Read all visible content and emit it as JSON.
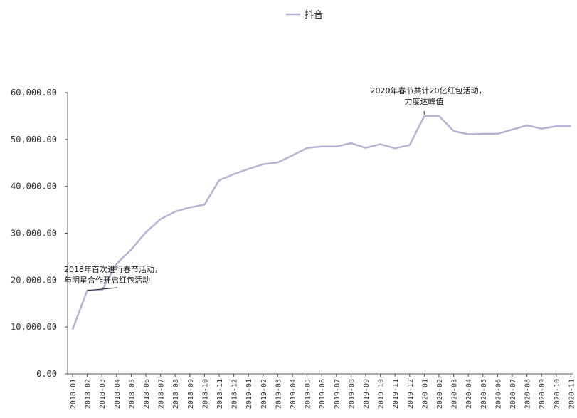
{
  "chart_data": {
    "type": "line",
    "title": "",
    "xlabel": "",
    "ylabel": "",
    "legend": {
      "position": "top-center"
    },
    "grid": false,
    "ylim": [
      0,
      60000
    ],
    "y_ticks": [
      "0.00",
      "10,000.00",
      "20,000.00",
      "30,000.00",
      "40,000.00",
      "50,000.00",
      "60,000.00"
    ],
    "x": [
      "2018-01",
      "2018-02",
      "2018-03",
      "2018-04",
      "2018-05",
      "2018-06",
      "2018-07",
      "2018-08",
      "2018-09",
      "2018-10",
      "2018-11",
      "2018-12",
      "2019-01",
      "2019-02",
      "2019-03",
      "2019-04",
      "2019-05",
      "2019-06",
      "2019-07",
      "2019-08",
      "2019-09",
      "2019-10",
      "2019-11",
      "2019-12",
      "2020-01",
      "2020-02",
      "2020-03",
      "2020-04",
      "2020-05",
      "2020-06",
      "2020-07",
      "2020-08",
      "2020-09",
      "2020-10",
      "2020-11"
    ],
    "series": [
      {
        "name": "抖音",
        "color": "#b3b3d4",
        "values": [
          9500,
          17800,
          17800,
          23500,
          26500,
          30200,
          33000,
          34600,
          35500,
          36100,
          41300,
          42600,
          43700,
          44700,
          45100,
          46600,
          48200,
          48500,
          48500,
          49200,
          48200,
          49000,
          48100,
          48800,
          55000,
          55000,
          51800,
          51100,
          51200,
          51200,
          52100,
          53000,
          52300,
          52800,
          52800
        ]
      }
    ],
    "annotations": [
      {
        "lines": [
          "2018年首次进行春节活动，",
          "与明星合作开启红包活动"
        ],
        "target_index": 1,
        "color": "#333333"
      },
      {
        "lines": [
          "2020年春节共计20亿红包活动，",
          "力度达峰值"
        ],
        "target_index": 24,
        "color": "#333333"
      }
    ]
  }
}
